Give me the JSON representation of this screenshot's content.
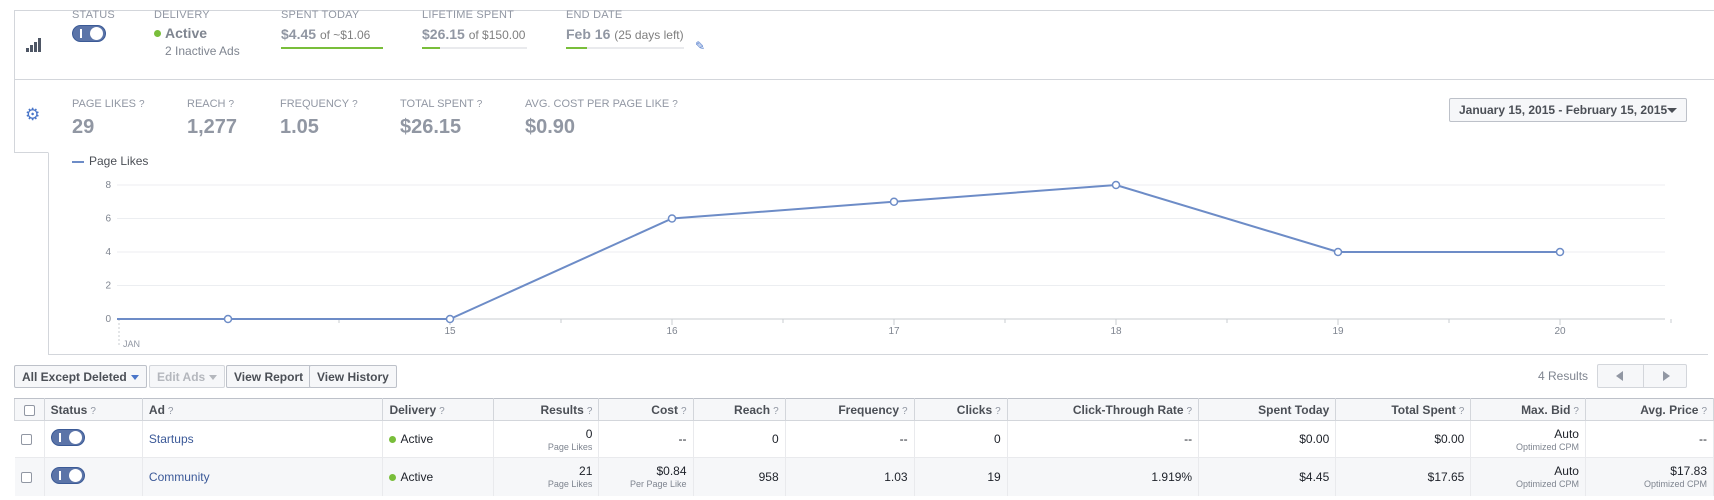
{
  "summary": {
    "status_label": "STATUS",
    "delivery_label": "DELIVERY",
    "delivery_value": "Active",
    "delivery_sub": "2 Inactive Ads",
    "spent_today_label": "SPENT TODAY",
    "spent_today_value": "$4.45",
    "spent_today_sub": "of ~$1.06",
    "lifetime_label": "LIFETIME SPENT",
    "lifetime_value": "$26.15",
    "lifetime_sub": "of $150.00",
    "end_date_label": "END DATE",
    "end_date_value": "Feb 16",
    "end_date_sub": "(25 days left)",
    "progress": {
      "spent_today": 1.0,
      "lifetime": 0.17,
      "end_date": 0.18
    }
  },
  "metrics": [
    {
      "label": "PAGE LIKES",
      "value": "29"
    },
    {
      "label": "REACH",
      "value": "1,277"
    },
    {
      "label": "FREQUENCY",
      "value": "1.05"
    },
    {
      "label": "TOTAL SPENT",
      "value": "$26.15"
    },
    {
      "label": "AVG. COST PER PAGE LIKE",
      "value": "$0.90"
    }
  ],
  "help_mark": "?",
  "date_range": "January 15, 2015 - February 15, 2015",
  "chart_data": {
    "type": "line",
    "x": [
      "14",
      "15",
      "16",
      "17",
      "18",
      "19",
      "20"
    ],
    "x_tick_labels": [
      "15",
      "16",
      "17",
      "18",
      "19",
      "20"
    ],
    "x_month_label": "JAN",
    "y_ticks": [
      "0",
      "2",
      "4",
      "6",
      "8"
    ],
    "ylim": [
      0,
      8
    ],
    "series": [
      {
        "name": "Page Likes",
        "values": [
          0,
          0,
          6,
          7,
          8,
          4,
          4
        ]
      }
    ],
    "colors": {
      "line": "#6d8cc7",
      "grid": "#eceef1"
    },
    "legend": "top-left"
  },
  "toolbar": {
    "filter_label": "All Except Deleted",
    "edit_label": "Edit Ads",
    "view_report_label": "View Report",
    "view_history_label": "View History",
    "results_count": "4 Results"
  },
  "table": {
    "headers": {
      "status": "Status",
      "ad": "Ad",
      "delivery": "Delivery",
      "results": "Results",
      "cost": "Cost",
      "reach": "Reach",
      "frequency": "Frequency",
      "clicks": "Clicks",
      "ctr": "Click-Through Rate",
      "spent_today": "Spent Today",
      "total_spent": "Total Spent",
      "max_bid": "Max. Bid",
      "avg_price": "Avg. Price"
    },
    "rows": [
      {
        "ad": "Startups",
        "delivery": "Active",
        "results": "0",
        "results_sub": "Page Likes",
        "cost": "--",
        "cost_sub": "",
        "reach": "0",
        "frequency": "--",
        "clicks": "0",
        "ctr": "--",
        "spent_today": "$0.00",
        "total_spent": "$0.00",
        "max_bid": "Auto",
        "max_bid_sub": "Optimized CPM",
        "avg_price": "--",
        "avg_price_sub": ""
      },
      {
        "ad": "Community",
        "delivery": "Active",
        "results": "21",
        "results_sub": "Page Likes",
        "cost": "$0.84",
        "cost_sub": "Per Page Like",
        "reach": "958",
        "frequency": "1.03",
        "clicks": "19",
        "ctr": "1.919%",
        "spent_today": "$4.45",
        "total_spent": "$17.65",
        "max_bid": "Auto",
        "max_bid_sub": "Optimized CPM",
        "avg_price": "$17.83",
        "avg_price_sub": "Optimized CPM"
      }
    ]
  },
  "colors": {
    "accent": "#4a76c9",
    "toggle": "#5b74a8",
    "active_dot": "#79be3a"
  }
}
